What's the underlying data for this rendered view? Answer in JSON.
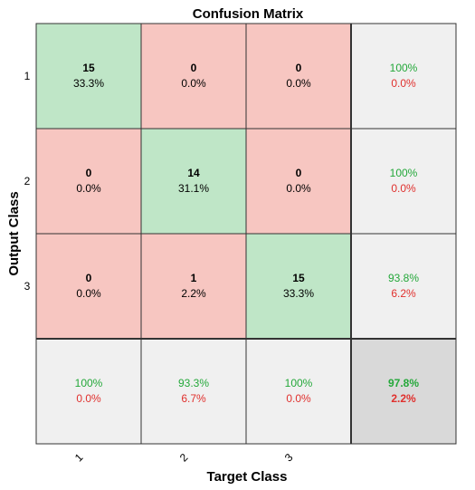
{
  "chart_data": {
    "type": "heatmap",
    "title": "Confusion Matrix",
    "xlabel": "Target Class",
    "ylabel": "Output Class",
    "x_tick_labels": [
      "1",
      "2",
      "3"
    ],
    "y_tick_labels": [
      "1",
      "2",
      "3"
    ],
    "matrix": [
      [
        {
          "count": "15",
          "pct": "33.3%"
        },
        {
          "count": "0",
          "pct": "0.0%"
        },
        {
          "count": "0",
          "pct": "0.0%"
        }
      ],
      [
        {
          "count": "0",
          "pct": "0.0%"
        },
        {
          "count": "14",
          "pct": "31.1%"
        },
        {
          "count": "0",
          "pct": "0.0%"
        }
      ],
      [
        {
          "count": "0",
          "pct": "0.0%"
        },
        {
          "count": "1",
          "pct": "2.2%"
        },
        {
          "count": "15",
          "pct": "33.3%"
        }
      ]
    ],
    "row_summary": [
      {
        "correct": "100%",
        "incorrect": "0.0%"
      },
      {
        "correct": "100%",
        "incorrect": "0.0%"
      },
      {
        "correct": "93.8%",
        "incorrect": "6.2%"
      }
    ],
    "col_summary": [
      {
        "correct": "100%",
        "incorrect": "0.0%"
      },
      {
        "correct": "93.3%",
        "incorrect": "6.7%"
      },
      {
        "correct": "100%",
        "incorrect": "0.0%"
      }
    ],
    "overall": {
      "correct": "97.8%",
      "incorrect": "2.2%"
    },
    "colors": {
      "diagonal": "#bfe6c7",
      "off_diagonal": "#f7c6c1",
      "summary": "#f0f0f0",
      "overall": "#d9d9d9",
      "correct_text": "#24a83a",
      "incorrect_text": "#e0302d"
    }
  }
}
